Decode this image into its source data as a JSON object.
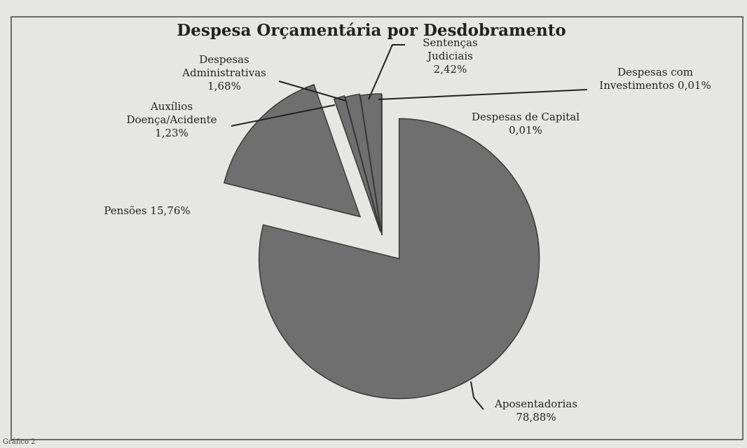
{
  "chart_data": {
    "type": "pie",
    "title": "Despesa Orçamentária por Desdobramento",
    "categories": [
      "Aposentadorias",
      "Pensões",
      "Auxílios Doença/Acidente",
      "Despesas Administrativas",
      "Sentenças Judiciais",
      "Despesas de Capital",
      "Despesas com Investimentos"
    ],
    "values": [
      78.88,
      15.76,
      1.23,
      1.68,
      2.42,
      0.01,
      0.01
    ],
    "value_labels": [
      "78,88%",
      "15,76%",
      "1,23%",
      "1,68%",
      "2,42%",
      "0,01%",
      "0,01%"
    ],
    "color": "#6f6f6f",
    "caption": "Gráfico 2"
  }
}
